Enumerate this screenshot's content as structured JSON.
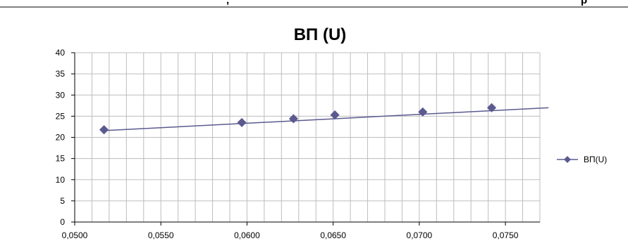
{
  "header_fragments": {
    "left": ",",
    "right": "p"
  },
  "chart_data": {
    "type": "line",
    "title": "BП (U)",
    "xlabel": "",
    "ylabel": "",
    "xlim": [
      0.05,
      0.077
    ],
    "ylim": [
      0,
      40
    ],
    "xticks": [
      "0,0500",
      "0,0550",
      "0,0600",
      "0,0650",
      "0,0700",
      "0,0750"
    ],
    "yticks": [
      "0",
      "5",
      "10",
      "15",
      "20",
      "25",
      "30",
      "35",
      "40"
    ],
    "grid": true,
    "legend_position": "right",
    "series": [
      {
        "name": "BП(U)",
        "color": "#5b5a8f",
        "points": [
          {
            "x": 0.0517,
            "y": 21.8
          },
          {
            "x": 0.0597,
            "y": 23.5
          },
          {
            "x": 0.0627,
            "y": 24.4
          },
          {
            "x": 0.0651,
            "y": 25.3
          },
          {
            "x": 0.0702,
            "y": 26.0
          },
          {
            "x": 0.0742,
            "y": 27.0
          }
        ],
        "trendline": {
          "x": [
            0.0517,
            0.0775
          ],
          "y": [
            21.6,
            27.0
          ]
        }
      }
    ]
  }
}
